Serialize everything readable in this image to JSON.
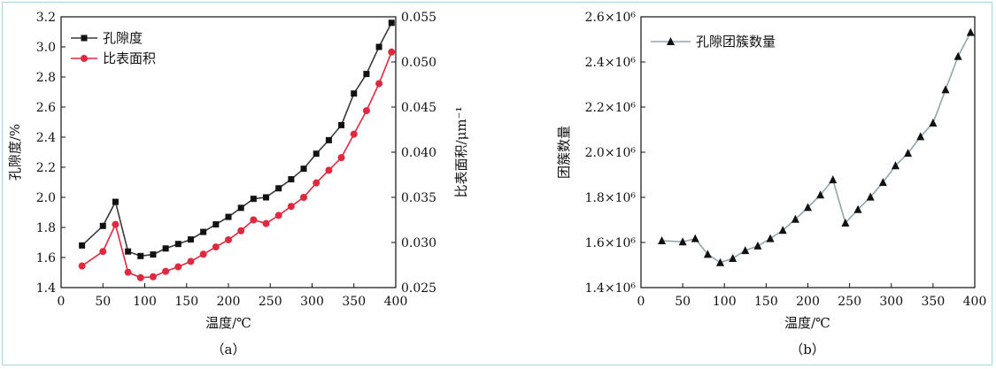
{
  "chart_data": [
    {
      "panel_label": "（a）",
      "type": "line",
      "xlabel": "温度/℃",
      "ylabel": "孔隙度/%",
      "y2label": "比表面积/μm⁻¹",
      "xlim": [
        0,
        400
      ],
      "ylim": [
        1.4,
        3.2
      ],
      "y2lim": [
        0.025,
        0.055
      ],
      "xticks": [
        "0",
        "50",
        "100",
        "150",
        "200",
        "250",
        "300",
        "350",
        "400"
      ],
      "yticks": [
        "1.4",
        "1.6",
        "1.8",
        "2.0",
        "2.2",
        "2.4",
        "2.6",
        "2.8",
        "3.0",
        "3.2"
      ],
      "y2ticks": [
        "0.025",
        "0.030",
        "0.035",
        "0.040",
        "0.045",
        "0.050",
        "0.055"
      ],
      "legend_position": "top-left",
      "series": [
        {
          "name": "孔隙度",
          "axis": "left",
          "marker": "square",
          "color": "#3a3a3a",
          "x": [
            25,
            50,
            65,
            80,
            95,
            110,
            125,
            140,
            155,
            170,
            185,
            200,
            215,
            230,
            245,
            260,
            275,
            290,
            305,
            320,
            335,
            350,
            365,
            380,
            395
          ],
          "y": [
            1.68,
            1.81,
            1.97,
            1.64,
            1.61,
            1.62,
            1.66,
            1.69,
            1.72,
            1.77,
            1.82,
            1.87,
            1.93,
            1.99,
            2.0,
            2.06,
            2.12,
            2.19,
            2.29,
            2.38,
            2.48,
            2.69,
            2.82,
            3.0,
            3.16
          ]
        },
        {
          "name": "比表面积",
          "axis": "right",
          "marker": "circle",
          "color": "#e0293f",
          "x": [
            25,
            50,
            65,
            80,
            95,
            110,
            125,
            140,
            155,
            170,
            185,
            200,
            215,
            230,
            245,
            260,
            275,
            290,
            305,
            320,
            335,
            350,
            365,
            380,
            395
          ],
          "y": [
            0.0274,
            0.029,
            0.032,
            0.0267,
            0.0261,
            0.0262,
            0.0268,
            0.0273,
            0.0279,
            0.0287,
            0.0295,
            0.0303,
            0.0313,
            0.0325,
            0.0321,
            0.033,
            0.034,
            0.035,
            0.0366,
            0.038,
            0.0394,
            0.042,
            0.0446,
            0.0476,
            0.0511
          ]
        }
      ]
    },
    {
      "panel_label": "（b）",
      "type": "line",
      "xlabel": "温度/℃",
      "ylabel": "团簇数量",
      "xlim": [
        0,
        400
      ],
      "ylim": [
        1300000,
        2600000
      ],
      "xticks": [
        "0",
        "50",
        "100",
        "150",
        "200",
        "250",
        "300",
        "350",
        "400"
      ],
      "yticks": [
        "1.4×10⁶",
        "1.6×10⁶",
        "1.8×10⁶",
        "2.0×10⁶",
        "2.2×10⁶",
        "2.4×10⁶",
        "2.6×10⁶"
      ],
      "legend_position": "top-left",
      "series": [
        {
          "name": "孔隙团簇数量",
          "marker": "triangle",
          "color": "#8fa6ad",
          "x": [
            25,
            50,
            65,
            80,
            95,
            110,
            125,
            140,
            155,
            170,
            185,
            200,
            215,
            230,
            245,
            260,
            275,
            290,
            305,
            320,
            335,
            350,
            365,
            380,
            395
          ],
          "y": [
            1525000,
            1520000,
            1535000,
            1460000,
            1420000,
            1440000,
            1478000,
            1500000,
            1535000,
            1575000,
            1628000,
            1685000,
            1745000,
            1818000,
            1610000,
            1675000,
            1735000,
            1805000,
            1885000,
            1945000,
            2025000,
            2090000,
            2250000,
            2410000,
            2525000
          ]
        }
      ]
    }
  ]
}
